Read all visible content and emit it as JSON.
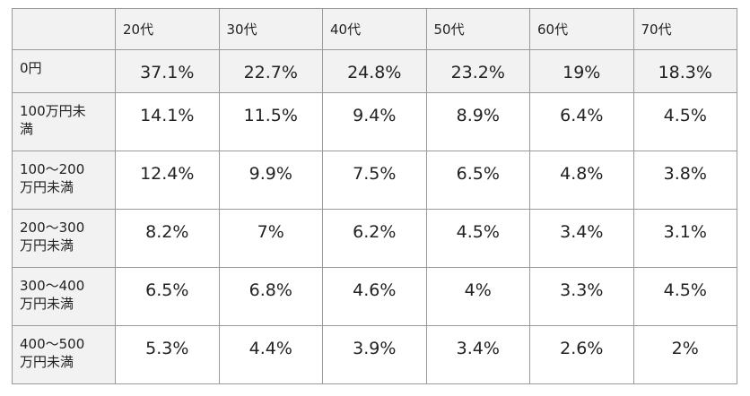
{
  "table": {
    "header": [
      "",
      "20代",
      "30代",
      "40代",
      "50代",
      "60代",
      "70代"
    ],
    "rows": [
      {
        "label": [
          "0円"
        ],
        "cells": [
          "37.1%",
          "22.7%",
          "24.8%",
          "23.2%",
          "19%",
          "18.3%"
        ]
      },
      {
        "label": [
          "100万円未満"
        ],
        "cells": [
          "14.1%",
          "11.5%",
          "9.4%",
          "8.9%",
          "6.4%",
          "4.5%"
        ]
      },
      {
        "label": [
          "100～200",
          "万円未満"
        ],
        "cells": [
          "12.4%",
          "9.9%",
          "7.5%",
          "6.5%",
          "4.8%",
          "3.8%"
        ]
      },
      {
        "label": [
          "200～300",
          "万円未満"
        ],
        "cells": [
          "8.2%",
          "7%",
          "6.2%",
          "4.5%",
          "3.4%",
          "3.1%"
        ]
      },
      {
        "label": [
          "300～400",
          "万円未満"
        ],
        "cells": [
          "6.5%",
          "6.8%",
          "4.6%",
          "4%",
          "3.3%",
          "4.5%"
        ]
      },
      {
        "label": [
          "400～500",
          "万円未満"
        ],
        "cells": [
          "5.3%",
          "4.4%",
          "3.9%",
          "3.4%",
          "2.6%",
          "2%"
        ]
      }
    ]
  }
}
